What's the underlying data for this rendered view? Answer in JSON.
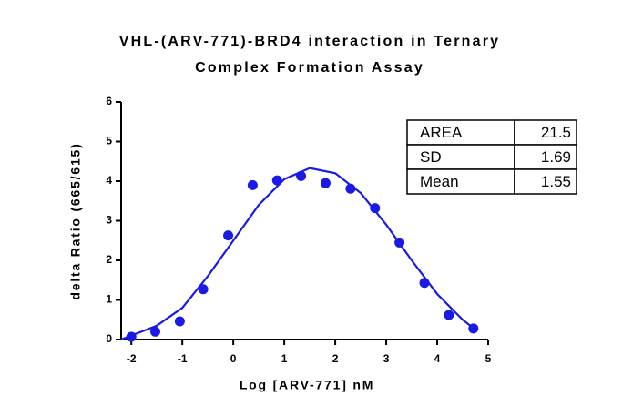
{
  "chart_data": {
    "type": "scatter",
    "title": [
      "VHL-(ARV-771)-BRD4 interaction in Ternary",
      "Complex Formation Assay"
    ],
    "x_label": "Log [ARV-771] nM",
    "y_label": "delta Ratio (665/615)",
    "xlim": [
      -2.2,
      5
    ],
    "xticks": [
      -2,
      -1,
      0,
      1,
      2,
      3,
      4,
      5
    ],
    "ylim": [
      0,
      6
    ],
    "yticks": [
      0,
      1,
      2,
      3,
      4,
      5,
      6
    ],
    "series": [
      {
        "mode": "markers",
        "color": "#1a1ae6",
        "x": [
          -2,
          -1.53,
          -1.05,
          -0.59,
          -0.1,
          0.38,
          0.86,
          1.33,
          1.81,
          2.3,
          2.78,
          3.26,
          3.75,
          4.23,
          4.71
        ],
        "values": [
          0.07,
          0.2,
          0.46,
          1.27,
          2.63,
          3.9,
          4.02,
          4.13,
          3.95,
          3.81,
          3.32,
          2.45,
          1.43,
          0.62,
          0.28
        ]
      },
      {
        "mode": "line",
        "color": "#1a1ae6",
        "x": [
          -2.2,
          -2,
          -1.5,
          -1,
          -0.5,
          0,
          0.5,
          1,
          1.5,
          2,
          2.5,
          3,
          3.5,
          4,
          4.5,
          4.7
        ],
        "values": [
          0,
          0.1,
          0.35,
          0.8,
          1.6,
          2.5,
          3.4,
          4.05,
          4.33,
          4.2,
          3.7,
          2.9,
          2.0,
          1.15,
          0.5,
          0.3
        ]
      }
    ],
    "stats_table": {
      "rows": [
        [
          "AREA",
          21.5
        ],
        [
          "SD",
          1.69
        ],
        [
          "Mean",
          1.55
        ]
      ]
    }
  }
}
